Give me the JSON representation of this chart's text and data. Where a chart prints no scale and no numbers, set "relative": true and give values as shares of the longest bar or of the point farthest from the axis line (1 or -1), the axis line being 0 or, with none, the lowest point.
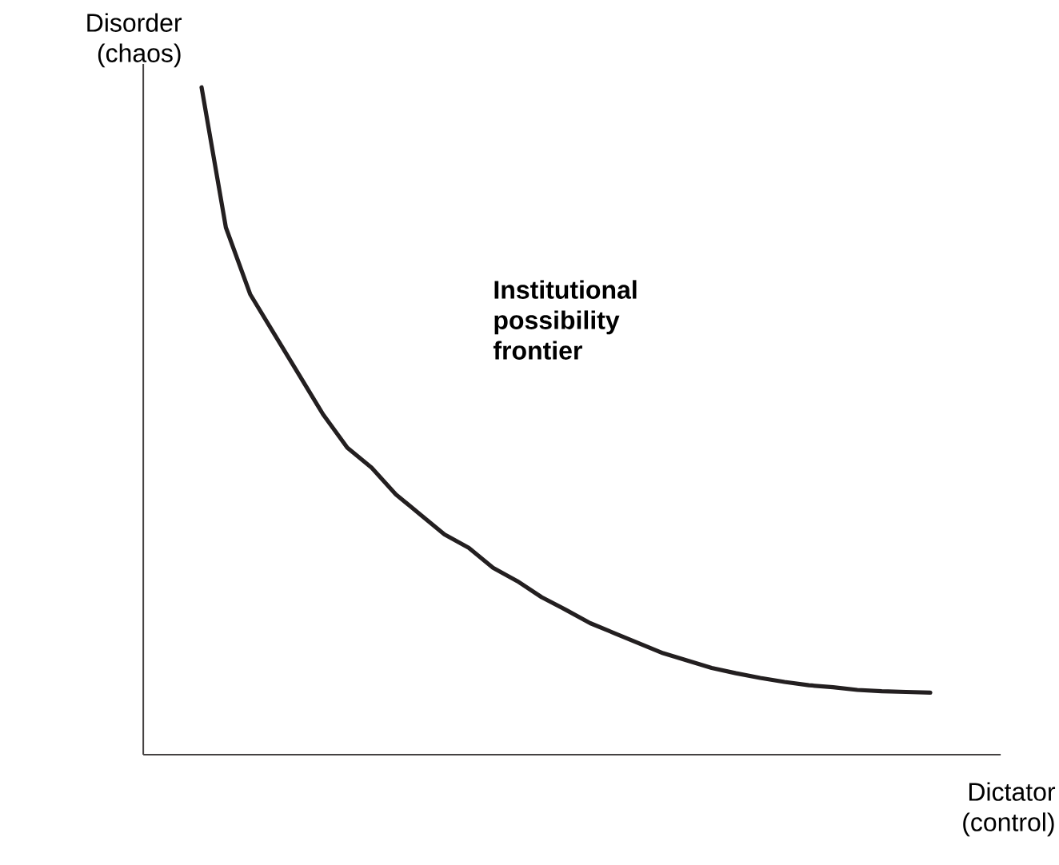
{
  "chart_data": {
    "type": "line",
    "relative": true,
    "xlabel": "Dictator (control)",
    "ylabel": "Disorder (chaos)",
    "annotations": [
      "Institutional possibility frontier"
    ],
    "color": "#231f20",
    "categories": [
      null,
      null,
      null,
      null,
      null,
      null,
      null,
      null,
      null,
      null,
      null,
      null,
      null,
      null,
      null,
      null,
      null,
      null,
      null,
      null,
      null,
      null,
      null,
      null,
      null,
      null,
      null,
      null,
      null,
      null,
      null
    ],
    "values": [
      1.0,
      0.79,
      0.69,
      0.63,
      0.57,
      0.51,
      0.46,
      0.43,
      0.39,
      0.36,
      0.33,
      0.31,
      0.28,
      0.26,
      0.236,
      0.217,
      0.197,
      0.182,
      0.167,
      0.152,
      0.141,
      0.13,
      0.122,
      0.115,
      0.109,
      0.104,
      0.101,
      0.097,
      0.095,
      0.094,
      0.093
    ]
  }
}
